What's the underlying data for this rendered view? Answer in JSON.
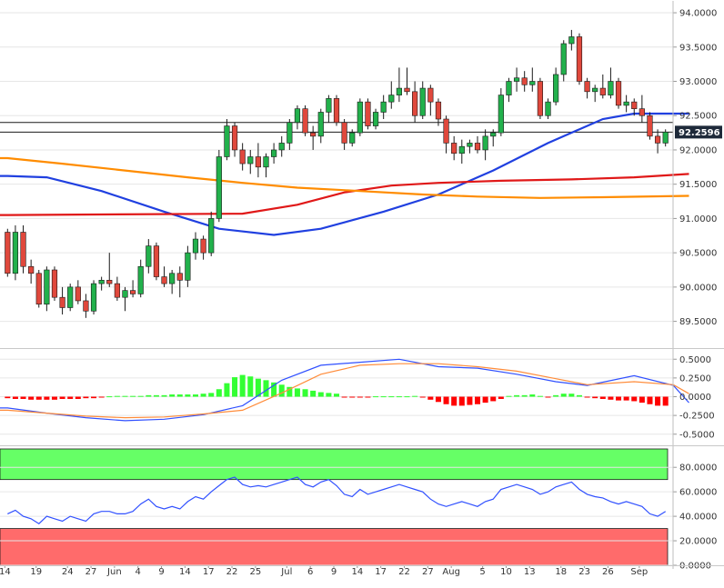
{
  "chart_data": {
    "type": "candlestick",
    "x_labels": [
      "14",
      "19",
      "24",
      "27",
      "Jun",
      "4",
      "9",
      "14",
      "17",
      "22",
      "25",
      "Jul",
      "6",
      "9",
      "14",
      "17",
      "22",
      "27",
      "Aug",
      "5",
      "10",
      "13",
      "18",
      "23",
      "26",
      "Sep"
    ],
    "price_panel": {
      "y_ticks": [
        "94.0000",
        "93.5000",
        "93.0000",
        "92.5000",
        "92.0000",
        "91.5000",
        "91.0000",
        "90.5000",
        "90.0000",
        "89.5000"
      ],
      "ylim": [
        89.15,
        94.12
      ],
      "last_price": "92.2596",
      "horizontal_levels": [
        92.4,
        92.26
      ],
      "colors": {
        "up": "#22b14c",
        "down": "#e0483c",
        "wick": "#1a1a1a"
      },
      "candles": [
        [
          90.8,
          90.85,
          90.15,
          90.2
        ],
        [
          90.2,
          90.9,
          90.1,
          90.8
        ],
        [
          90.8,
          90.9,
          90.2,
          90.3
        ],
        [
          90.3,
          90.4,
          90.05,
          90.2
        ],
        [
          90.2,
          90.25,
          89.7,
          89.75
        ],
        [
          89.75,
          90.3,
          89.65,
          90.25
        ],
        [
          90.25,
          90.3,
          89.8,
          89.85
        ],
        [
          89.85,
          90.0,
          89.6,
          89.7
        ],
        [
          89.7,
          90.05,
          89.65,
          90.0
        ],
        [
          90.0,
          90.1,
          89.75,
          89.8
        ],
        [
          89.8,
          89.9,
          89.55,
          89.65
        ],
        [
          89.65,
          90.1,
          89.6,
          90.05
        ],
        [
          90.05,
          90.15,
          89.95,
          90.1
        ],
        [
          90.1,
          90.5,
          90.0,
          90.05
        ],
        [
          90.05,
          90.15,
          89.8,
          89.85
        ],
        [
          89.85,
          90.0,
          89.65,
          89.95
        ],
        [
          89.95,
          90.1,
          89.85,
          89.9
        ],
        [
          89.9,
          90.4,
          89.85,
          90.3
        ],
        [
          90.3,
          90.7,
          90.2,
          90.6
        ],
        [
          90.6,
          90.65,
          90.1,
          90.15
        ],
        [
          90.15,
          90.3,
          90.0,
          90.05
        ],
        [
          90.05,
          90.25,
          89.9,
          90.2
        ],
        [
          90.2,
          90.3,
          89.85,
          90.1
        ],
        [
          90.1,
          90.6,
          90.0,
          90.5
        ],
        [
          90.5,
          90.8,
          90.4,
          90.7
        ],
        [
          90.7,
          90.75,
          90.4,
          90.5
        ],
        [
          90.5,
          91.1,
          90.45,
          91.0
        ],
        [
          91.0,
          92.0,
          90.95,
          91.9
        ],
        [
          91.9,
          92.45,
          91.85,
          92.35
        ],
        [
          92.35,
          92.4,
          91.9,
          92.0
        ],
        [
          92.0,
          92.1,
          91.7,
          91.8
        ],
        [
          91.8,
          92.0,
          91.65,
          91.9
        ],
        [
          91.9,
          92.1,
          91.6,
          91.75
        ],
        [
          91.75,
          91.95,
          91.6,
          91.9
        ],
        [
          91.9,
          92.1,
          91.8,
          92.0
        ],
        [
          92.0,
          92.2,
          91.9,
          92.1
        ],
        [
          92.1,
          92.45,
          92.0,
          92.4
        ],
        [
          92.4,
          92.65,
          92.3,
          92.6
        ],
        [
          92.6,
          92.65,
          92.2,
          92.25
        ],
        [
          92.25,
          92.35,
          92.0,
          92.2
        ],
        [
          92.2,
          92.6,
          92.1,
          92.55
        ],
        [
          92.55,
          92.8,
          92.4,
          92.75
        ],
        [
          92.75,
          92.8,
          92.35,
          92.4
        ],
        [
          92.4,
          92.45,
          92.0,
          92.1
        ],
        [
          92.1,
          92.3,
          92.05,
          92.25
        ],
        [
          92.25,
          92.75,
          92.2,
          92.7
        ],
        [
          92.7,
          92.75,
          92.3,
          92.35
        ],
        [
          92.35,
          92.6,
          92.3,
          92.55
        ],
        [
          92.55,
          92.8,
          92.45,
          92.7
        ],
        [
          92.7,
          93.0,
          92.6,
          92.8
        ],
        [
          92.8,
          93.2,
          92.7,
          92.9
        ],
        [
          92.9,
          93.2,
          92.8,
          92.85
        ],
        [
          92.85,
          93.0,
          92.4,
          92.5
        ],
        [
          92.5,
          93.0,
          92.45,
          92.9
        ],
        [
          92.9,
          92.95,
          92.5,
          92.7
        ],
        [
          92.7,
          92.75,
          92.35,
          92.45
        ],
        [
          92.45,
          92.5,
          91.95,
          92.1
        ],
        [
          92.1,
          92.2,
          91.85,
          91.95
        ],
        [
          91.95,
          92.15,
          91.8,
          92.05
        ],
        [
          92.05,
          92.15,
          91.95,
          92.1
        ],
        [
          92.1,
          92.2,
          91.95,
          92.0
        ],
        [
          92.0,
          92.3,
          91.85,
          92.2
        ],
        [
          92.2,
          92.3,
          92.05,
          92.25
        ],
        [
          92.25,
          92.9,
          92.2,
          92.8
        ],
        [
          92.8,
          93.05,
          92.7,
          93.0
        ],
        [
          93.0,
          93.2,
          92.85,
          93.05
        ],
        [
          93.05,
          93.15,
          92.85,
          92.95
        ],
        [
          92.95,
          93.2,
          92.85,
          93.0
        ],
        [
          93.0,
          93.05,
          92.45,
          92.5
        ],
        [
          92.5,
          92.75,
          92.45,
          92.7
        ],
        [
          92.7,
          93.2,
          92.65,
          93.1
        ],
        [
          93.1,
          93.6,
          93.0,
          93.55
        ],
        [
          93.55,
          93.75,
          93.45,
          93.65
        ],
        [
          93.65,
          93.7,
          92.95,
          93.0
        ],
        [
          93.0,
          93.05,
          92.75,
          92.85
        ],
        [
          92.85,
          92.95,
          92.7,
          92.9
        ],
        [
          92.9,
          93.1,
          92.75,
          92.8
        ],
        [
          92.8,
          93.2,
          92.75,
          93.0
        ],
        [
          93.0,
          93.05,
          92.6,
          92.65
        ],
        [
          92.65,
          92.8,
          92.55,
          92.7
        ],
        [
          92.7,
          92.75,
          92.5,
          92.6
        ],
        [
          92.6,
          92.8,
          92.4,
          92.5
        ],
        [
          92.5,
          92.55,
          92.15,
          92.2
        ],
        [
          92.2,
          92.3,
          91.95,
          92.1
        ],
        [
          92.1,
          92.3,
          92.05,
          92.26
        ]
      ],
      "moving_averages": [
        {
          "color": "#2040e0",
          "start": 91.62,
          "points": [
            [
              0,
              91.62
            ],
            [
              5,
              91.6
            ],
            [
              12,
              91.4
            ],
            [
              20,
              91.1
            ],
            [
              27,
              90.85
            ],
            [
              34,
              90.76
            ],
            [
              40,
              90.85
            ],
            [
              48,
              91.1
            ],
            [
              55,
              91.35
            ],
            [
              62,
              91.7
            ],
            [
              69,
              92.1
            ],
            [
              76,
              92.45
            ],
            [
              80,
              92.53
            ],
            [
              87,
              92.53
            ]
          ]
        },
        {
          "color": "#e01818",
          "start": 91.05,
          "points": [
            [
              0,
              91.05
            ],
            [
              30,
              91.07
            ],
            [
              37,
              91.2
            ],
            [
              43,
              91.38
            ],
            [
              49,
              91.48
            ],
            [
              55,
              91.52
            ],
            [
              63,
              91.55
            ],
            [
              72,
              91.57
            ],
            [
              80,
              91.6
            ],
            [
              87,
              91.65
            ]
          ]
        },
        {
          "color": "#ff8c00",
          "start": 91.88,
          "points": [
            [
              0,
              91.88
            ],
            [
              7,
              91.8
            ],
            [
              15,
              91.7
            ],
            [
              23,
              91.6
            ],
            [
              30,
              91.52
            ],
            [
              37,
              91.45
            ],
            [
              45,
              91.4
            ],
            [
              53,
              91.35
            ],
            [
              60,
              91.32
            ],
            [
              68,
              91.3
            ],
            [
              76,
              91.31
            ],
            [
              87,
              91.33
            ]
          ]
        }
      ]
    },
    "macd_panel": {
      "y_ticks": [
        "0.5000",
        "0.2500",
        "0.0000",
        "-0.2500",
        "-0.5000"
      ],
      "ylim": [
        -0.6,
        0.6
      ],
      "histogram_colors": {
        "positive": "#33ff33",
        "negative": "#ff0000"
      },
      "histogram": [
        -0.02,
        -0.03,
        -0.03,
        -0.04,
        -0.04,
        -0.04,
        -0.04,
        -0.03,
        -0.03,
        -0.03,
        -0.02,
        -0.02,
        -0.01,
        0.005,
        0.01,
        0.01,
        0.01,
        0.01,
        0.02,
        0.02,
        0.02,
        0.03,
        0.03,
        0.03,
        0.03,
        0.04,
        0.05,
        0.1,
        0.18,
        0.26,
        0.29,
        0.27,
        0.24,
        0.22,
        0.19,
        0.16,
        0.13,
        0.11,
        0.1,
        0.08,
        0.06,
        0.05,
        0.04,
        -0.01,
        -0.01,
        -0.01,
        -0.01,
        0.005,
        0.005,
        0.005,
        0.005,
        0.005,
        0.01,
        -0.01,
        -0.04,
        -0.07,
        -0.1,
        -0.12,
        -0.12,
        -0.11,
        -0.1,
        -0.08,
        -0.06,
        -0.03,
        0.01,
        0.02,
        0.02,
        0.03,
        0.01,
        -0.01,
        0.02,
        0.04,
        0.04,
        0.02,
        -0.01,
        -0.02,
        -0.03,
        -0.04,
        -0.05,
        -0.05,
        -0.06,
        -0.08,
        -0.1,
        -0.12,
        -0.12
      ],
      "lines": [
        {
          "color": "#3050ff",
          "points": [
            [
              0,
              -0.15
            ],
            [
              5,
              -0.22
            ],
            [
              10,
              -0.28
            ],
            [
              15,
              -0.32
            ],
            [
              20,
              -0.3
            ],
            [
              25,
              -0.24
            ],
            [
              30,
              -0.12
            ],
            [
              35,
              0.22
            ],
            [
              40,
              0.42
            ],
            [
              45,
              0.46
            ],
            [
              50,
              0.5
            ],
            [
              55,
              0.4
            ],
            [
              60,
              0.38
            ],
            [
              65,
              0.3
            ],
            [
              70,
              0.2
            ],
            [
              74,
              0.15
            ],
            [
              80,
              0.28
            ],
            [
              85,
              0.15
            ],
            [
              87,
              -0.08
            ]
          ]
        },
        {
          "color": "#ff8c3a",
          "points": [
            [
              0,
              -0.18
            ],
            [
              5,
              -0.22
            ],
            [
              10,
              -0.26
            ],
            [
              15,
              -0.28
            ],
            [
              20,
              -0.27
            ],
            [
              25,
              -0.23
            ],
            [
              30,
              -0.18
            ],
            [
              35,
              0.05
            ],
            [
              40,
              0.3
            ],
            [
              45,
              0.42
            ],
            [
              50,
              0.44
            ],
            [
              55,
              0.44
            ],
            [
              60,
              0.4
            ],
            [
              65,
              0.34
            ],
            [
              70,
              0.24
            ],
            [
              74,
              0.16
            ],
            [
              80,
              0.2
            ],
            [
              85,
              0.16
            ],
            [
              87,
              0.04
            ]
          ]
        }
      ]
    },
    "rsi_panel": {
      "y_ticks": [
        "80.0000",
        "60.0000",
        "40.0000",
        "20.0000",
        "0.0000"
      ],
      "ylim": [
        0,
        95
      ],
      "overbought_color": "#66ff66",
      "oversold_color": "#ff6b6b",
      "overbought_from": 70,
      "oversold_to": 30,
      "line_color": "#3050ff",
      "values": [
        42,
        45,
        40,
        38,
        34,
        40,
        38,
        36,
        40,
        38,
        36,
        42,
        44,
        44,
        42,
        42,
        44,
        50,
        54,
        48,
        46,
        48,
        46,
        52,
        56,
        54,
        60,
        65,
        70,
        72,
        66,
        64,
        65,
        64,
        66,
        68,
        70,
        72,
        66,
        64,
        68,
        70,
        65,
        58,
        56,
        62,
        58,
        60,
        62,
        64,
        66,
        64,
        62,
        60,
        54,
        50,
        48,
        50,
        52,
        50,
        48,
        52,
        54,
        62,
        64,
        66,
        64,
        62,
        58,
        60,
        64,
        66,
        68,
        62,
        58,
        56,
        55,
        52,
        50,
        52,
        50,
        48,
        42,
        40,
        44
      ]
    }
  }
}
